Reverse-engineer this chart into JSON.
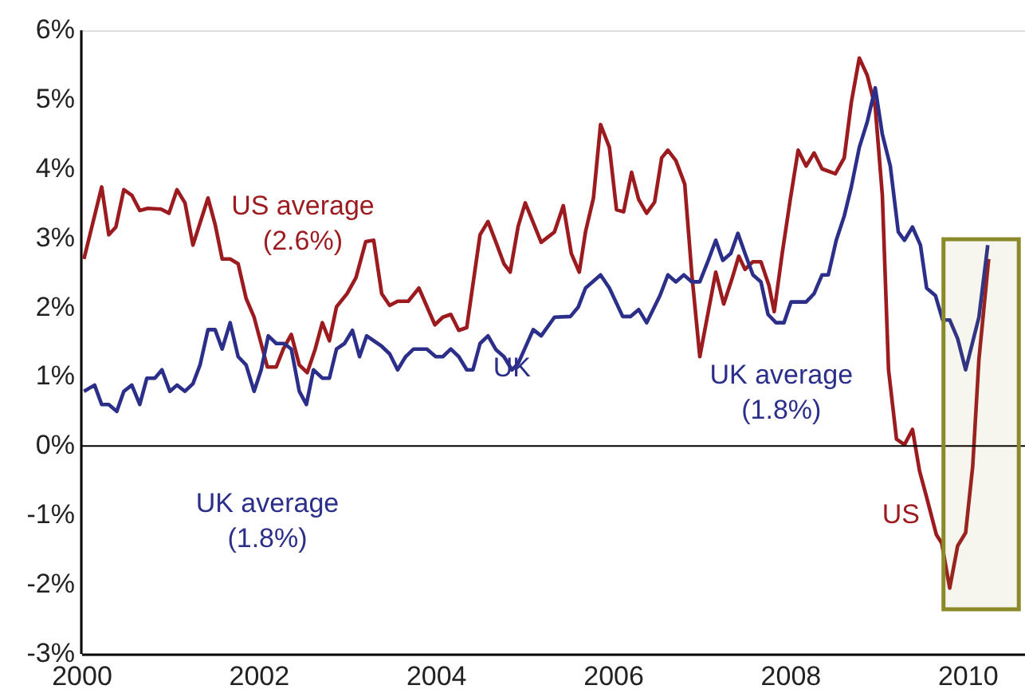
{
  "chart_data": {
    "type": "line",
    "x": [
      2000.03,
      2000.23,
      2000.31,
      2000.39,
      2000.48,
      2000.57,
      2000.66,
      2000.75,
      2000.9,
      2000.99,
      2001.08,
      2001.17,
      2001.26,
      2001.43,
      2001.51,
      2001.59,
      2001.68,
      2001.77,
      2001.86,
      2001.95,
      2002.1,
      2002.2,
      2002.28,
      2002.37,
      2002.46,
      2002.55,
      2002.64,
      2002.72,
      2002.8,
      2002.88,
      2003.0,
      2003.1,
      2003.21,
      2003.3,
      2003.39,
      2003.48,
      2003.57,
      2003.69,
      2003.81,
      2003.99,
      2004.08,
      2004.17,
      2004.26,
      2004.35,
      2004.5,
      2004.59,
      2004.68,
      2004.77,
      2004.84,
      2004.93,
      2005.01,
      2005.19,
      2005.34,
      2005.44,
      2005.53,
      2005.62,
      2005.69,
      2005.78,
      2005.86,
      2005.96,
      2006.04,
      2006.12,
      2006.21,
      2006.29,
      2006.38,
      2006.47,
      2006.55,
      2006.62,
      2006.71,
      2006.81,
      2006.89,
      2006.98,
      2007.07,
      2007.16,
      2007.25,
      2007.34,
      2007.42,
      2007.49,
      2007.58,
      2007.67,
      2007.76,
      2007.82,
      2007.91,
      2008.0,
      2008.09,
      2008.18,
      2008.27,
      2008.36,
      2008.51,
      2008.61,
      2008.69,
      2008.78,
      2008.87,
      2008.96,
      2009.04,
      2009.11,
      2009.2,
      2009.29,
      2009.38,
      2009.46,
      2009.54,
      2009.65,
      2009.71,
      2009.8,
      2009.89,
      2009.98,
      2010.06,
      2010.13,
      2010.24
    ],
    "series": [
      {
        "name": "US",
        "color": "#9b1b1f",
        "values": [
          2.7,
          3.74,
          3.05,
          3.16,
          3.7,
          3.62,
          3.4,
          3.43,
          3.42,
          3.36,
          3.7,
          3.51,
          2.9,
          3.58,
          3.2,
          2.7,
          2.7,
          2.63,
          2.13,
          1.86,
          1.14,
          1.14,
          1.4,
          1.61,
          1.17,
          1.06,
          1.4,
          1.78,
          1.52,
          2.01,
          2.2,
          2.43,
          2.95,
          2.97,
          2.2,
          2.03,
          2.09,
          2.09,
          2.28,
          1.75,
          1.86,
          1.9,
          1.67,
          1.71,
          3.05,
          3.24,
          2.94,
          2.63,
          2.51,
          3.17,
          3.51,
          2.94,
          3.09,
          3.47,
          2.78,
          2.51,
          3.09,
          3.58,
          4.64,
          4.31,
          3.41,
          3.38,
          3.95,
          3.56,
          3.36,
          3.52,
          4.16,
          4.27,
          4.12,
          3.78,
          2.48,
          1.29,
          1.9,
          2.51,
          2.05,
          2.4,
          2.74,
          2.55,
          2.66,
          2.66,
          2.32,
          1.94,
          2.78,
          3.55,
          4.27,
          4.04,
          4.23,
          4.0,
          3.93,
          4.16,
          4.96,
          5.6,
          5.35,
          4.89,
          3.62,
          1.1,
          0.1,
          0.02,
          0.24,
          -0.36,
          -0.74,
          -1.28,
          -1.4,
          -2.05,
          -1.44,
          -1.25,
          -0.29,
          1.25,
          2.7
        ]
      },
      {
        "name": "UK",
        "color": "#2b2f8a",
        "x": [
          2000.03,
          2000.15,
          2000.23,
          2000.31,
          2000.4,
          2000.48,
          2000.57,
          2000.66,
          2000.74,
          2000.83,
          2000.91,
          2001.0,
          2001.08,
          2001.17,
          2001.26,
          2001.34,
          2001.43,
          2001.51,
          2001.59,
          2001.68,
          2001.77,
          2001.86,
          2001.95,
          2002.03,
          2002.11,
          2002.2,
          2002.29,
          2002.37,
          2002.46,
          2002.54,
          2002.62,
          2002.72,
          2002.8,
          2002.88,
          2002.97,
          2003.06,
          2003.14,
          2003.22,
          2003.3,
          2003.39,
          2003.48,
          2003.57,
          2003.66,
          2003.75,
          2003.9,
          2004.0,
          2004.08,
          2004.17,
          2004.26,
          2004.35,
          2004.42,
          2004.5,
          2004.59,
          2004.68,
          2004.77,
          2004.86,
          2004.93,
          2005.1,
          2005.19,
          2005.34,
          2005.52,
          2005.61,
          2005.69,
          2005.86,
          2005.96,
          2006.11,
          2006.2,
          2006.29,
          2006.38,
          2006.53,
          2006.62,
          2006.71,
          2006.8,
          2006.89,
          2006.98,
          2007.07,
          2007.16,
          2007.24,
          2007.33,
          2007.41,
          2007.49,
          2007.58,
          2007.67,
          2007.75,
          2007.84,
          2007.93,
          2008.01,
          2008.18,
          2008.27,
          2008.36,
          2008.43,
          2008.52,
          2008.61,
          2008.69,
          2008.78,
          2008.87,
          2008.96,
          2009.04,
          2009.13,
          2009.22,
          2009.29,
          2009.38,
          2009.47,
          2009.54,
          2009.64,
          2009.72,
          2009.8,
          2009.89,
          2009.98,
          2010.13,
          2010.23
        ],
        "values": [
          0.79,
          0.88,
          0.6,
          0.6,
          0.5,
          0.79,
          0.88,
          0.6,
          0.98,
          0.98,
          1.1,
          0.79,
          0.88,
          0.79,
          0.9,
          1.17,
          1.68,
          1.68,
          1.4,
          1.78,
          1.29,
          1.17,
          0.79,
          1.1,
          1.59,
          1.48,
          1.48,
          1.4,
          0.79,
          0.6,
          1.1,
          0.98,
          0.98,
          1.4,
          1.48,
          1.67,
          1.29,
          1.59,
          1.52,
          1.44,
          1.33,
          1.1,
          1.29,
          1.4,
          1.4,
          1.29,
          1.29,
          1.4,
          1.29,
          1.1,
          1.1,
          1.48,
          1.59,
          1.39,
          1.29,
          1.1,
          1.19,
          1.68,
          1.59,
          1.86,
          1.87,
          2.01,
          2.28,
          2.47,
          2.28,
          1.87,
          1.87,
          1.97,
          1.78,
          2.17,
          2.47,
          2.37,
          2.47,
          2.37,
          2.37,
          2.66,
          2.97,
          2.68,
          2.78,
          3.07,
          2.78,
          2.47,
          2.37,
          1.9,
          1.78,
          1.78,
          2.08,
          2.08,
          2.2,
          2.47,
          2.47,
          2.97,
          3.32,
          3.74,
          4.31,
          4.68,
          5.17,
          4.5,
          4.04,
          3.09,
          2.97,
          3.16,
          2.9,
          2.28,
          2.17,
          1.82,
          1.82,
          1.55,
          1.1,
          1.86,
          2.9
        ]
      }
    ],
    "xlim": [
      2000,
      2010.65
    ],
    "xticks": [
      2000,
      2002,
      2004,
      2006,
      2008,
      2010
    ],
    "ylim": [
      -3,
      6
    ],
    "yticks": [
      {
        "value": -3,
        "label": "-3%"
      },
      {
        "value": -2,
        "label": "-2%"
      },
      {
        "value": -1,
        "label": "-1%"
      },
      {
        "value": 0,
        "label": "0%"
      },
      {
        "value": 1,
        "label": "1%"
      },
      {
        "value": 2,
        "label": "2%"
      },
      {
        "value": 3,
        "label": "3%"
      },
      {
        "value": 4,
        "label": "4%"
      },
      {
        "value": 5,
        "label": "5%"
      },
      {
        "value": 6,
        "label": "6%"
      }
    ],
    "ref_lines": [
      {
        "axis": "y",
        "value": 0,
        "color": "#000000"
      }
    ],
    "bands": [
      {
        "axis": "x",
        "from": 2009.73,
        "to": 2010.58,
        "color": "#8a8a2a"
      }
    ],
    "annotations": [
      "US average (2.6%)",
      "UK average (1.8%)",
      "UK average (1.8%)"
    ],
    "grid": false,
    "legend": false,
    "marker": "none",
    "line_style": "solid"
  }
}
